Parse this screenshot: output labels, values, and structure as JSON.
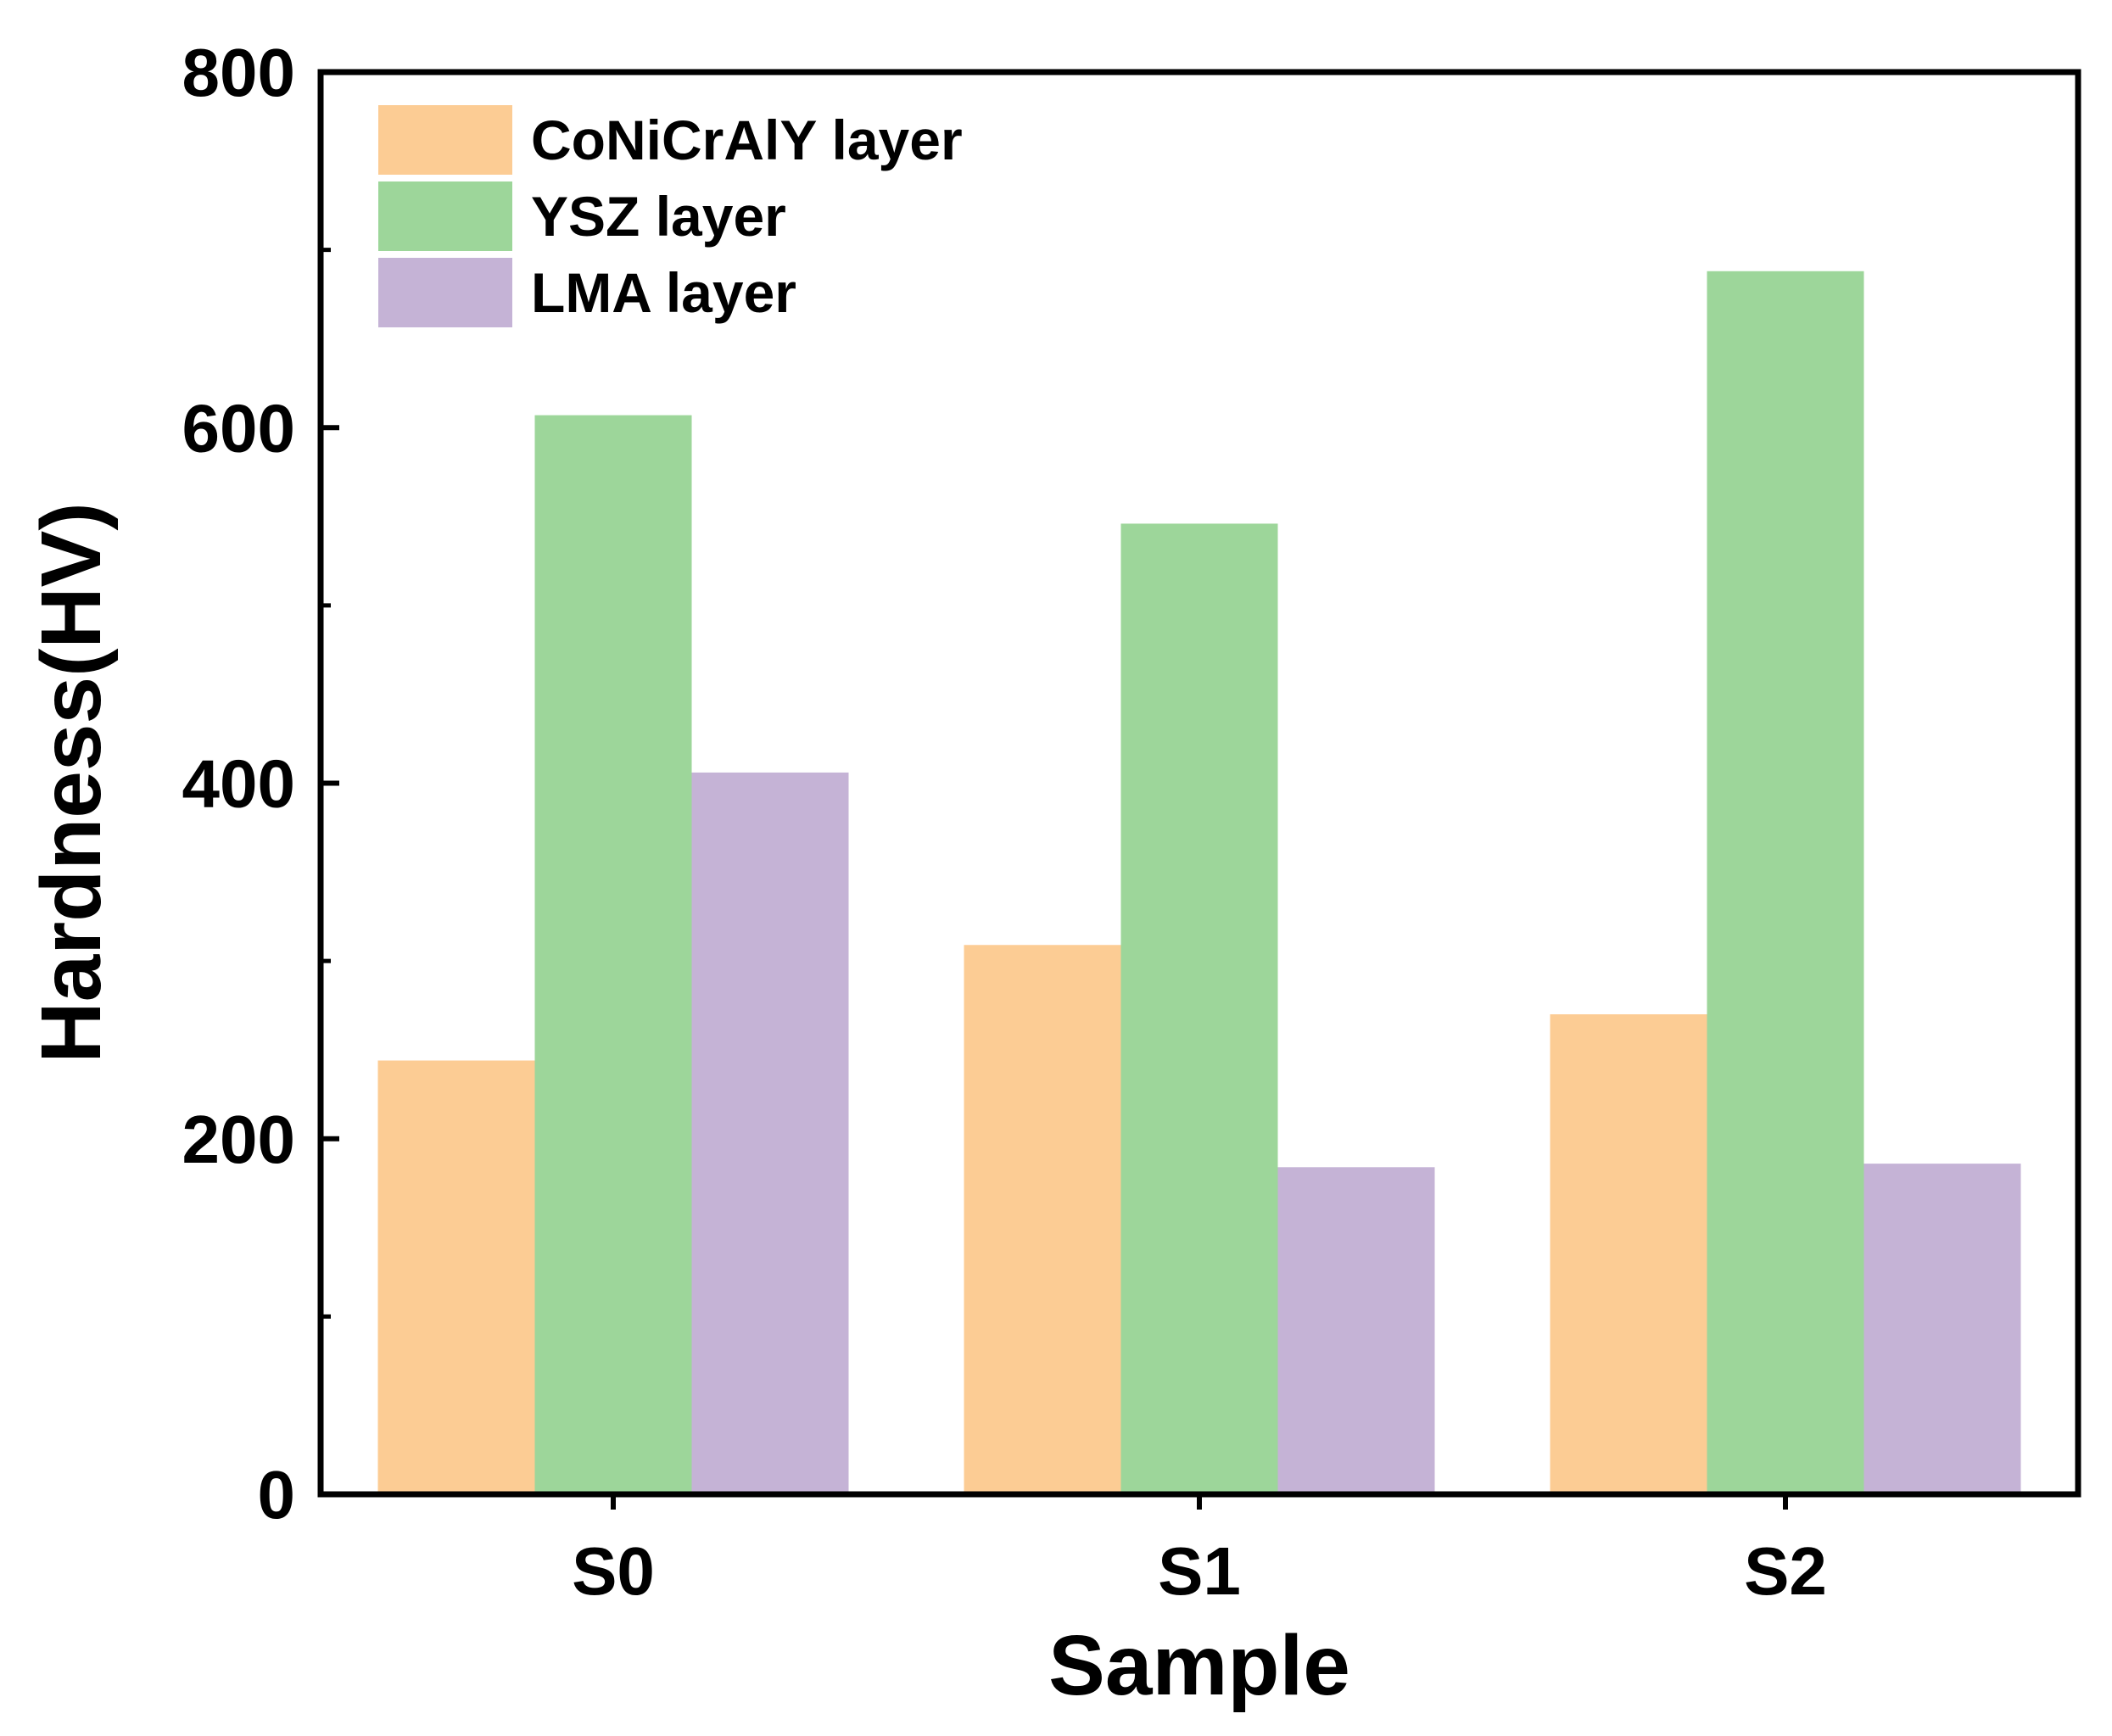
{
  "chart_data": {
    "type": "bar",
    "title": "",
    "xlabel": "Sample",
    "ylabel": "Hardness(HV)",
    "categories": [
      "S0",
      "S1",
      "S2"
    ],
    "series": [
      {
        "name": "CoNiCrAlY layer",
        "color": "#FCCC94",
        "values": [
          244,
          309,
          270
        ]
      },
      {
        "name": "YSZ layer",
        "color": "#9DD69A",
        "values": [
          607,
          546,
          688
        ]
      },
      {
        "name": "LMA layer",
        "color": "#C5B3D6",
        "values": [
          406,
          184,
          186
        ]
      }
    ],
    "ylim": [
      0,
      800
    ],
    "yticks": [
      "0",
      "200",
      "400",
      "600",
      "800"
    ],
    "minor_yticks": [
      100,
      300,
      500,
      700
    ],
    "grid": false,
    "legend_position": "top-left"
  }
}
